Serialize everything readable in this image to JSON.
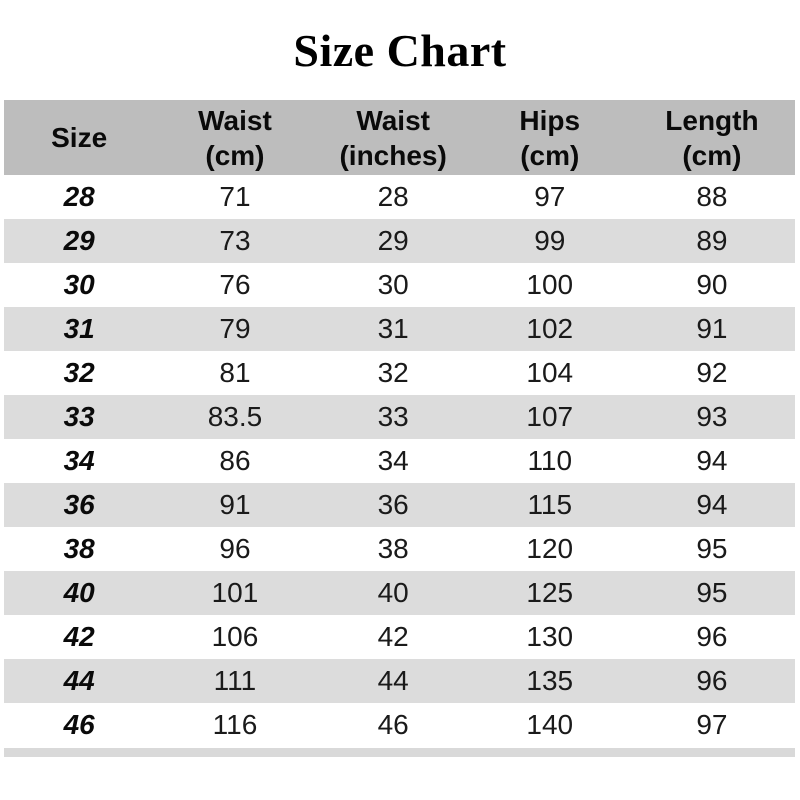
{
  "title": "Size Chart",
  "chart_data": {
    "type": "table",
    "title": "Size Chart",
    "columns": [
      "Size",
      "Waist (cm)",
      "Waist (inches)",
      "Hips (cm)",
      "Length (cm)"
    ],
    "rows": [
      [
        "28",
        "71",
        "28",
        "97",
        "88"
      ],
      [
        "29",
        "73",
        "29",
        "99",
        "89"
      ],
      [
        "30",
        "76",
        "30",
        "100",
        "90"
      ],
      [
        "31",
        "79",
        "31",
        "102",
        "91"
      ],
      [
        "32",
        "81",
        "32",
        "104",
        "92"
      ],
      [
        "33",
        "83.5",
        "33",
        "107",
        "93"
      ],
      [
        "34",
        "86",
        "34",
        "110",
        "94"
      ],
      [
        "36",
        "91",
        "36",
        "115",
        "94"
      ],
      [
        "38",
        "96",
        "38",
        "120",
        "95"
      ],
      [
        "40",
        "101",
        "40",
        "125",
        "95"
      ],
      [
        "42",
        "106",
        "42",
        "130",
        "96"
      ],
      [
        "44",
        "111",
        "44",
        "135",
        "96"
      ],
      [
        "46",
        "116",
        "46",
        "140",
        "97"
      ]
    ],
    "layout": {
      "row_striping": "white / light gray alternating",
      "header_background": "gray",
      "partial_next_row_visible_at_bottom": true
    }
  },
  "table": {
    "headers": [
      {
        "l1": "Size",
        "l2": ""
      },
      {
        "l1": "Waist",
        "l2": "(cm)"
      },
      {
        "l1": "Waist",
        "l2": "(inches)"
      },
      {
        "l1": "Hips",
        "l2": "(cm)"
      },
      {
        "l1": "Length",
        "l2": "(cm)"
      }
    ]
  },
  "colors": {
    "header_bg": "#bdbdbd",
    "row_alt_bg": "#dcdcdc",
    "partial_row_bg": "#d9d9d9",
    "title_text": "#000000",
    "body_text": "#1a1a1a"
  }
}
